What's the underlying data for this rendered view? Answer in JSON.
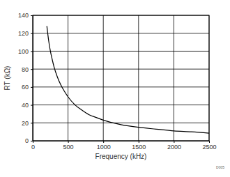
{
  "chart_data": {
    "type": "line",
    "x_label": "Frequency (kHz)",
    "y_label": "RT (kΩ)",
    "annotation": "D005",
    "series": [
      {
        "name": "RT",
        "color": "#000000",
        "x": [
          200,
          225,
          250,
          275,
          300,
          350,
          400,
          450,
          500,
          600,
          700,
          800,
          900,
          1000,
          1250,
          1500,
          1750,
          2000,
          2250,
          2500
        ],
        "values": [
          128,
          112,
          100,
          91,
          83,
          71,
          62,
          55,
          49,
          40,
          34,
          29,
          26,
          23,
          18,
          15,
          13,
          11,
          10,
          8.5
        ]
      }
    ],
    "xlim": [
      0,
      2500
    ],
    "xticks": [
      0,
      500,
      1000,
      1500,
      2000,
      2500
    ],
    "ylim": [
      0,
      140
    ],
    "yticks": [
      0,
      20,
      40,
      60,
      80,
      100,
      120,
      140
    ],
    "grid": true
  }
}
